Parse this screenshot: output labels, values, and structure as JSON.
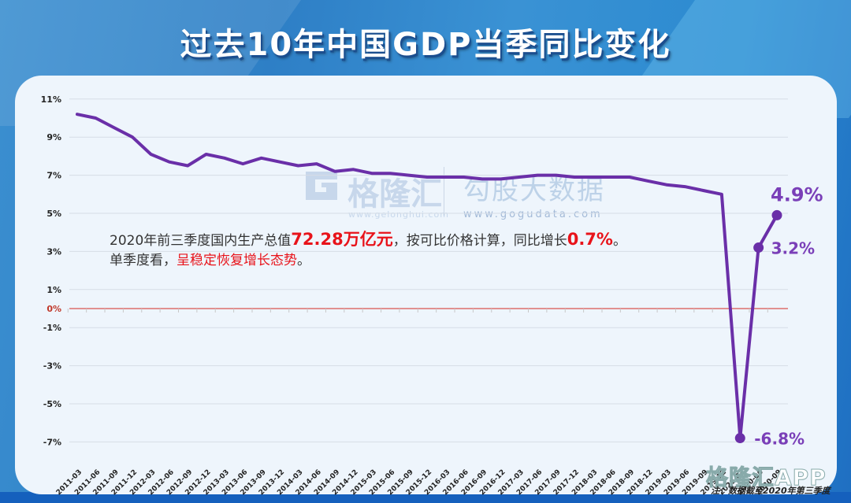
{
  "title": "过去10年中国GDP当季同比变化",
  "annotation": {
    "line1_prefix": "2020年前三季度国内生产总值",
    "line1_value": "72.28万亿元",
    "line1_mid": "，按可比价格计算，同比增长",
    "line1_growth": "0.7%",
    "line1_end": "。",
    "line2_prefix": "单季度看，",
    "line2_highlight": "呈稳定恢复增长态势",
    "line2_end": "。"
  },
  "note": "注：数据截至2020年第三季度",
  "watermarks": {
    "logo_text": "格隆汇",
    "logo_url": "www.gelonghui.com",
    "data_text": "勾股大数据",
    "data_url": "www.gogudata.com",
    "app_text": "格隆汇APP"
  },
  "colors": {
    "line": "#6a2fa8",
    "zero_line": "#d9534f",
    "highlight_red": "#e8131a",
    "label_purple": "#7a3fb8"
  },
  "chart_data": {
    "type": "line",
    "title": "过去10年中国GDP当季同比变化",
    "xlabel": "",
    "ylabel": "",
    "ylim": [
      -7,
      11
    ],
    "yticks": [
      "11%",
      "9%",
      "7%",
      "5%",
      "3%",
      "1%",
      "0%",
      "-1%",
      "-3%",
      "-5%",
      "-7%"
    ],
    "grid": true,
    "legend": "none",
    "categories": [
      "2011-03",
      "2011-06",
      "2011-09",
      "2011-12",
      "2012-03",
      "2012-06",
      "2012-09",
      "2012-12",
      "2013-03",
      "2013-06",
      "2013-09",
      "2013-12",
      "2014-03",
      "2014-06",
      "2014-09",
      "2014-12",
      "2015-03",
      "2015-06",
      "2015-09",
      "2015-12",
      "2016-03",
      "2016-06",
      "2016-09",
      "2016-12",
      "2017-03",
      "2017-06",
      "2017-09",
      "2017-12",
      "2018-03",
      "2018-06",
      "2018-09",
      "2018-12",
      "2019-03",
      "2019-06",
      "2019-09",
      "2019-12",
      "2020-03",
      "2020-06",
      "2020-09"
    ],
    "series": [
      {
        "name": "GDP当季同比",
        "values": [
          10.2,
          10.0,
          9.5,
          9.0,
          8.1,
          7.7,
          7.5,
          8.1,
          7.9,
          7.6,
          7.9,
          7.7,
          7.5,
          7.6,
          7.2,
          7.3,
          7.1,
          7.1,
          7.0,
          6.9,
          6.9,
          6.9,
          6.8,
          6.8,
          6.9,
          7.0,
          7.0,
          6.9,
          6.9,
          6.9,
          6.9,
          6.7,
          6.5,
          6.4,
          6.2,
          6.0,
          -6.8,
          3.2,
          4.9
        ]
      }
    ],
    "data_labels": [
      {
        "category": "2020-03",
        "text": "-6.8%"
      },
      {
        "category": "2020-06",
        "text": "3.2%"
      },
      {
        "category": "2020-09",
        "text": "4.9%"
      }
    ]
  }
}
